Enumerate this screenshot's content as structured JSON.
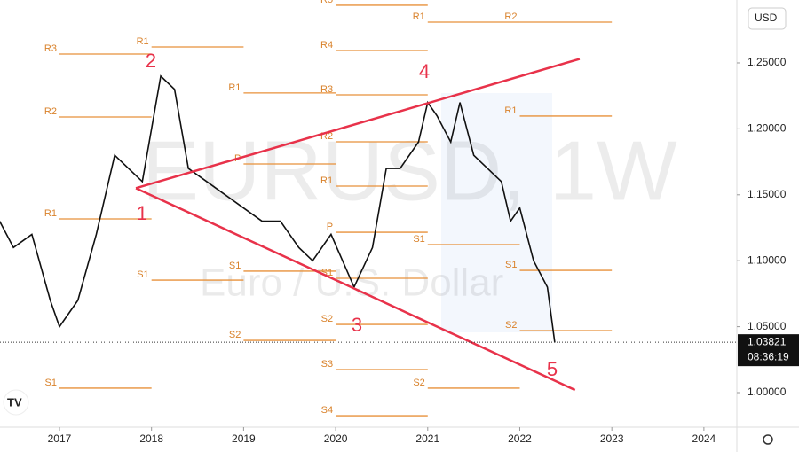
{
  "chart_data": {
    "type": "line",
    "watermark": "EURUSD, 1W",
    "watermark_subtitle": "Euro / U.S. Dollar",
    "currency": "USD",
    "x": [
      2016.35,
      2016.5,
      2016.7,
      2016.9,
      2017.0,
      2017.2,
      2017.4,
      2017.6,
      2017.75,
      2017.9,
      2018.0,
      2018.1,
      2018.25,
      2018.4,
      2018.6,
      2018.8,
      2019.0,
      2019.2,
      2019.4,
      2019.6,
      2019.75,
      2019.95,
      2020.2,
      2020.4,
      2020.55,
      2020.7,
      2020.9,
      2021.0,
      2021.1,
      2021.25,
      2021.35,
      2021.5,
      2021.65,
      2021.8,
      2021.9,
      2022.0,
      2022.15,
      2022.3,
      2022.38
    ],
    "values": [
      1.13,
      1.11,
      1.12,
      1.07,
      1.05,
      1.07,
      1.12,
      1.18,
      1.17,
      1.16,
      1.2,
      1.24,
      1.23,
      1.17,
      1.16,
      1.15,
      1.14,
      1.13,
      1.13,
      1.11,
      1.1,
      1.12,
      1.08,
      1.11,
      1.17,
      1.17,
      1.19,
      1.22,
      1.21,
      1.19,
      1.22,
      1.18,
      1.17,
      1.16,
      1.13,
      1.14,
      1.1,
      1.08,
      1.038
    ],
    "color": "#111111",
    "xlim": [
      2016.354,
      2024.358
    ],
    "ylim": [
      0.9738,
      1.2977
    ],
    "xticks": [
      2017,
      2018,
      2019,
      2020,
      2021,
      2022,
      2023,
      2024
    ],
    "yticks": [
      {
        "value": 1.0,
        "label": "1.00000"
      },
      {
        "value": 1.05,
        "label": "1.05000"
      },
      {
        "value": 1.1,
        "label": "1.10000"
      },
      {
        "value": 1.15,
        "label": "1.15000"
      },
      {
        "value": 1.2,
        "label": "1.20000"
      },
      {
        "value": 1.25,
        "label": "1.25000"
      }
    ],
    "last_price": {
      "value": 1.03821,
      "label": "1.03821"
    },
    "countdown": "08:36:19",
    "trendline_color": "#e8324a",
    "trendlines": [
      {
        "x": [
          2017.83,
          2022.65
        ],
        "y": [
          1.155,
          1.253
        ]
      },
      {
        "x": [
          2017.83,
          2022.6
        ],
        "y": [
          1.155,
          1.002
        ]
      }
    ],
    "pivot_color": "#e8913a",
    "pivots": [
      {
        "label": "R3",
        "value": 1.2567,
        "x": [
          2017,
          2018
        ]
      },
      {
        "label": "R2",
        "value": 1.209,
        "x": [
          2017,
          2018
        ]
      },
      {
        "label": "R1",
        "value": 1.1317,
        "x": [
          2017,
          2018
        ]
      },
      {
        "label": "S1",
        "value": 1.0034,
        "x": [
          2017,
          2018
        ]
      },
      {
        "label": "R1",
        "value": 1.2621,
        "x": [
          2018,
          2019
        ]
      },
      {
        "label": "S1",
        "value": 1.0853,
        "x": [
          2018,
          2019
        ]
      },
      {
        "label": "R1",
        "value": 1.2272,
        "x": [
          2019,
          2020
        ]
      },
      {
        "label": "P",
        "value": 1.1734,
        "x": [
          2019,
          2020
        ]
      },
      {
        "label": "S1",
        "value": 1.0921,
        "x": [
          2019,
          2020
        ]
      },
      {
        "label": "S2",
        "value": 1.0396,
        "x": [
          2019,
          2020
        ]
      },
      {
        "label": "R5",
        "value": 1.2937,
        "x": [
          2020,
          2021
        ]
      },
      {
        "label": "R4",
        "value": 1.2594,
        "x": [
          2020,
          2021
        ]
      },
      {
        "label": "R3",
        "value": 1.2258,
        "x": [
          2020,
          2021
        ]
      },
      {
        "label": "R2",
        "value": 1.1902,
        "x": [
          2020,
          2021
        ]
      },
      {
        "label": "R1",
        "value": 1.1566,
        "x": [
          2020,
          2021
        ]
      },
      {
        "label": "P",
        "value": 1.1216,
        "x": [
          2020,
          2021
        ]
      },
      {
        "label": "S1",
        "value": 1.0867,
        "x": [
          2020,
          2021
        ]
      },
      {
        "label": "S2",
        "value": 1.0517,
        "x": [
          2020,
          2021
        ]
      },
      {
        "label": "S3",
        "value": 1.0175,
        "x": [
          2020,
          2021
        ]
      },
      {
        "label": "S4",
        "value": 0.9825,
        "x": [
          2020,
          2021
        ]
      },
      {
        "label": "R1",
        "value": 1.2809,
        "x": [
          2021,
          2022
        ]
      },
      {
        "label": "S1",
        "value": 1.1122,
        "x": [
          2021,
          2022
        ]
      },
      {
        "label": "S2",
        "value": 1.0034,
        "x": [
          2021,
          2022
        ]
      },
      {
        "label": "R2",
        "value": 1.2809,
        "x": [
          2022,
          2023
        ]
      },
      {
        "label": "R1",
        "value": 1.2097,
        "x": [
          2022,
          2023
        ]
      },
      {
        "label": "S1",
        "value": 1.0927,
        "x": [
          2022,
          2023
        ]
      },
      {
        "label": "S2",
        "value": 1.047,
        "x": [
          2022,
          2023
        ]
      }
    ],
    "wave_labels": [
      "1",
      "2",
      "3",
      "4",
      "5"
    ]
  }
}
